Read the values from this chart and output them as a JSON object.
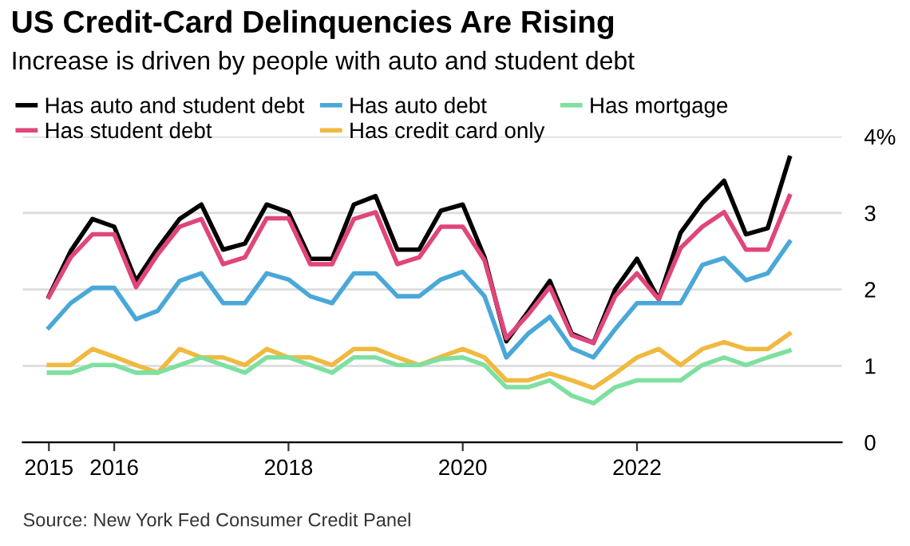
{
  "chart_data": {
    "type": "line",
    "title": "US Credit-Card Delinquencies Are Rising",
    "subtitle": "Increase is driven by people with auto and student debt",
    "x": [
      2015.25,
      2015.5,
      2015.75,
      2016,
      2016.25,
      2016.5,
      2016.75,
      2017,
      2017.25,
      2017.5,
      2017.75,
      2018,
      2018.25,
      2018.5,
      2018.75,
      2019,
      2019.25,
      2019.5,
      2019.75,
      2020,
      2020.25,
      2020.5,
      2020.75,
      2021,
      2021.25,
      2021.5,
      2021.75,
      2022,
      2022.25,
      2022.5,
      2022.75,
      2023,
      2023.25,
      2023.5,
      2023.75
    ],
    "series": [
      {
        "name": "Has auto and student debt",
        "color": "#000000",
        "values": [
          1.91,
          2.5,
          2.92,
          2.82,
          2.11,
          2.54,
          2.92,
          3.11,
          2.52,
          2.6,
          3.11,
          3.01,
          2.4,
          2.4,
          3.11,
          3.22,
          2.52,
          2.52,
          3.03,
          3.11,
          2.42,
          1.32,
          1.71,
          2.11,
          1.42,
          1.3,
          2.0,
          2.4,
          1.87,
          2.74,
          3.13,
          3.42,
          2.72,
          2.8,
          3.72
        ]
      },
      {
        "name": "Has student debt",
        "color": "#e0457b",
        "values": [
          1.9,
          2.42,
          2.72,
          2.72,
          2.03,
          2.46,
          2.82,
          2.92,
          2.33,
          2.42,
          2.93,
          2.93,
          2.33,
          2.33,
          2.92,
          3.01,
          2.33,
          2.42,
          2.82,
          2.82,
          2.38,
          1.36,
          1.67,
          2.03,
          1.4,
          1.3,
          1.91,
          2.21,
          1.87,
          2.54,
          2.82,
          3.01,
          2.52,
          2.52,
          3.22
        ]
      },
      {
        "name": "Has auto debt",
        "color": "#4aa8d8",
        "values": [
          1.5,
          1.82,
          2.02,
          2.02,
          1.61,
          1.72,
          2.11,
          2.21,
          1.82,
          1.82,
          2.21,
          2.13,
          1.91,
          1.82,
          2.21,
          2.21,
          1.91,
          1.91,
          2.13,
          2.23,
          1.91,
          1.11,
          1.42,
          1.64,
          1.23,
          1.11,
          1.48,
          1.82,
          1.82,
          1.82,
          2.32,
          2.41,
          2.12,
          2.21,
          2.62
        ]
      },
      {
        "name": "Has credit card only",
        "color": "#f0b940",
        "values": [
          1.01,
          1.01,
          1.22,
          1.12,
          1.01,
          0.91,
          1.22,
          1.11,
          1.11,
          1.01,
          1.22,
          1.11,
          1.11,
          1.01,
          1.22,
          1.22,
          1.11,
          1.01,
          1.12,
          1.22,
          1.11,
          0.81,
          0.81,
          0.9,
          0.81,
          0.71,
          0.9,
          1.11,
          1.22,
          1.01,
          1.22,
          1.31,
          1.22,
          1.22,
          1.42
        ]
      },
      {
        "name": "Has mortgage",
        "color": "#7ee0a0",
        "values": [
          0.91,
          0.91,
          1.01,
          1.01,
          0.91,
          0.91,
          1.01,
          1.11,
          1.01,
          0.91,
          1.11,
          1.11,
          1.01,
          0.91,
          1.11,
          1.11,
          1.01,
          1.01,
          1.09,
          1.11,
          1.01,
          0.72,
          0.72,
          0.81,
          0.61,
          0.51,
          0.72,
          0.81,
          0.81,
          0.81,
          1.01,
          1.11,
          1.01,
          1.11,
          1.2
        ]
      }
    ],
    "xlim": [
      2014.95,
      2024.35
    ],
    "xticks": [
      {
        "value": 2015.25,
        "label": "2015"
      },
      2016,
      2018,
      2020,
      2022
    ],
    "ylim": [
      0,
      4
    ],
    "yticks": [
      0,
      1,
      2,
      3,
      {
        "value": 4,
        "label": "4%"
      }
    ],
    "grid": "y",
    "legend": "top",
    "marker": "none",
    "line_style": "solid",
    "annotations": [
      "Source: New York Fed Consumer Credit Panel"
    ]
  }
}
